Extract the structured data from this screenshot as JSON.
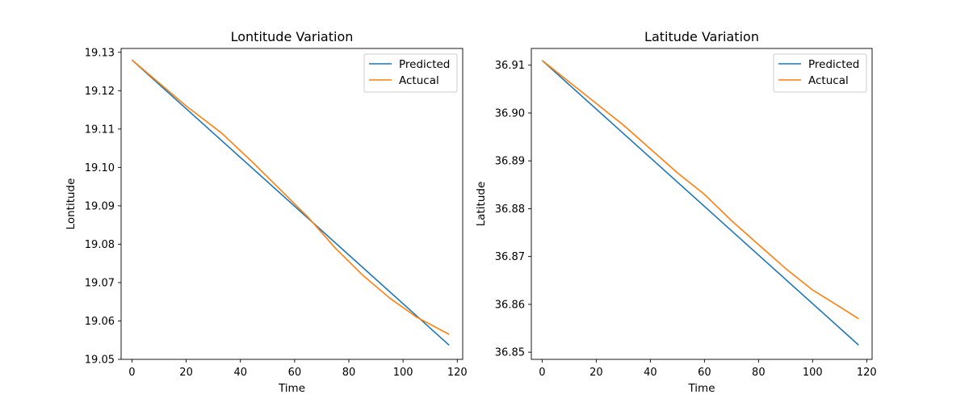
{
  "colors": {
    "predicted": "#1f77b4",
    "actual": "#ff7f0e",
    "axes": "#000000",
    "background": "#ffffff"
  },
  "chart_data": [
    {
      "type": "line",
      "title": "Lontitude Variation",
      "xlabel": "Time",
      "ylabel": "Lontitude",
      "xlim": [
        -4,
        122
      ],
      "ylim": [
        19.05,
        19.131
      ],
      "xticks": [
        0,
        20,
        40,
        60,
        80,
        100,
        120
      ],
      "xtick_labels": [
        "0",
        "20",
        "40",
        "60",
        "80",
        "100",
        "120"
      ],
      "yticks": [
        19.05,
        19.06,
        19.07,
        19.08,
        19.09,
        19.1,
        19.11,
        19.12,
        19.13
      ],
      "ytick_labels": [
        "19.05",
        "19.06",
        "19.07",
        "19.08",
        "19.09",
        "19.10",
        "19.11",
        "19.12",
        "19.13"
      ],
      "grid": false,
      "legend_position": "top-right",
      "series": [
        {
          "name": "Predicted",
          "color_key": "predicted",
          "x": [
            0,
            117
          ],
          "y": [
            19.128,
            19.0537
          ]
        },
        {
          "name": "Actucal",
          "color_key": "actual",
          "x": [
            0,
            10,
            20,
            33,
            45,
            55,
            65,
            75,
            85,
            95,
            105,
            117
          ],
          "y": [
            19.128,
            19.122,
            19.116,
            19.109,
            19.101,
            19.094,
            19.087,
            19.079,
            19.072,
            19.066,
            19.061,
            19.0565
          ]
        }
      ]
    },
    {
      "type": "line",
      "title": "Latitude Variation",
      "xlabel": "Time",
      "ylabel": "Latitude",
      "xlim": [
        -4,
        122
      ],
      "ylim": [
        36.8485,
        36.9135
      ],
      "xticks": [
        0,
        20,
        40,
        60,
        80,
        100,
        120
      ],
      "xtick_labels": [
        "0",
        "20",
        "40",
        "60",
        "80",
        "100",
        "120"
      ],
      "yticks": [
        36.85,
        36.86,
        36.87,
        36.88,
        36.89,
        36.9,
        36.91
      ],
      "ytick_labels": [
        "36.85",
        "36.86",
        "36.87",
        "36.88",
        "36.89",
        "36.90",
        "36.91"
      ],
      "grid": false,
      "legend_position": "top-right",
      "series": [
        {
          "name": "Predicted",
          "color_key": "predicted",
          "x": [
            0,
            117
          ],
          "y": [
            36.911,
            36.8515
          ]
        },
        {
          "name": "Actucal",
          "color_key": "actual",
          "x": [
            0,
            10,
            20,
            30,
            40,
            50,
            60,
            70,
            80,
            90,
            100,
            110,
            117
          ],
          "y": [
            36.911,
            36.9065,
            36.902,
            36.8975,
            36.8925,
            36.8875,
            36.883,
            36.8775,
            36.8725,
            36.8675,
            36.863,
            36.8595,
            36.857
          ]
        }
      ]
    }
  ]
}
